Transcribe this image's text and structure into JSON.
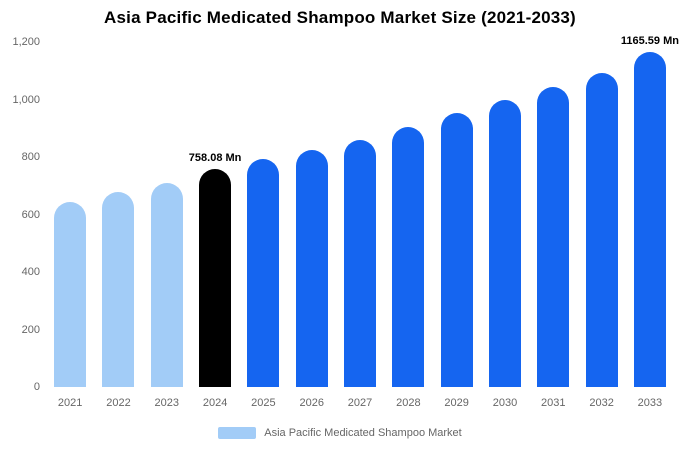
{
  "chart_data": {
    "type": "bar",
    "title": "Asia Pacific Medicated Shampoo Market Size (2021-2033)",
    "legend": "Asia Pacific Medicated Shampoo Market",
    "categories": [
      "2021",
      "2022",
      "2023",
      "2024",
      "2025",
      "2026",
      "2027",
      "2028",
      "2029",
      "2030",
      "2031",
      "2032",
      "2033"
    ],
    "values": [
      645,
      678,
      710,
      758.08,
      792,
      823,
      860,
      905,
      952,
      1000,
      1045,
      1092,
      1165.59
    ],
    "unit": "Mn",
    "data_labels": {
      "2024": "758.08 Mn",
      "2033": "1165.59 Mn"
    },
    "bar_colors": [
      "#A2CCF7",
      "#A2CCF7",
      "#A2CCF7",
      "#000000",
      "#1565F0",
      "#1565F0",
      "#1565F0",
      "#1565F0",
      "#1565F0",
      "#1565F0",
      "#1565F0",
      "#1565F0",
      "#1565F0"
    ],
    "ylim": [
      0,
      1200
    ],
    "y_ticks": [
      "1,200",
      "1,000",
      "800",
      "600",
      "400",
      "200",
      "0"
    ],
    "grid": false,
    "legend_position": "bottom",
    "colors": {
      "light_series": "#A2CCF7",
      "primary_series": "#1565F0",
      "highlight": "#000000",
      "axis_text": "#666666",
      "title_text": "#000000",
      "background": "#FFFFFF"
    }
  }
}
